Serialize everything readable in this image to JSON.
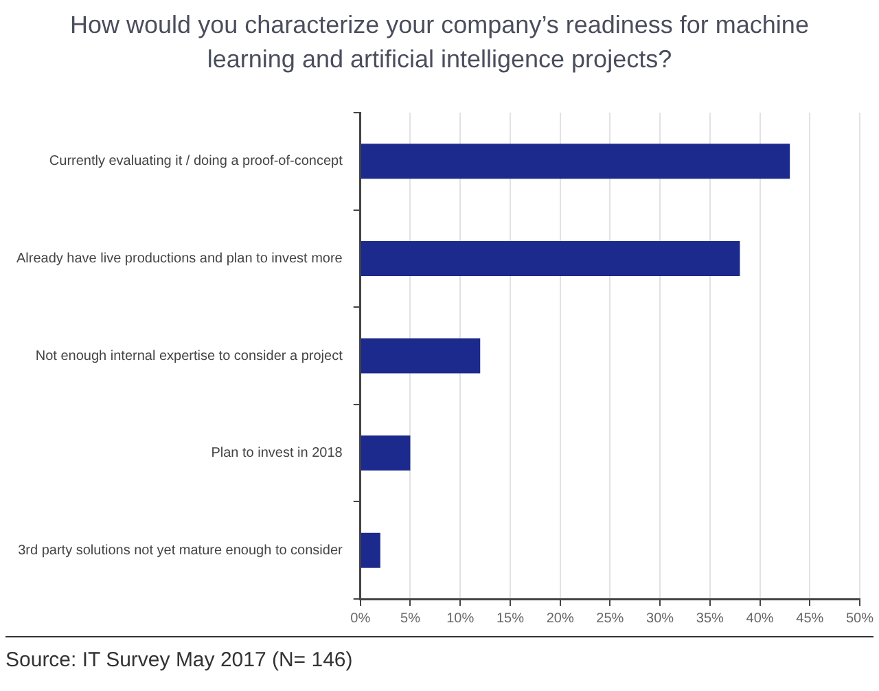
{
  "chart_data": {
    "type": "bar",
    "orientation": "horizontal",
    "title": "How would you characterize your company’s readiness for machine learning and artificial intelligence projects?",
    "categories": [
      "Currently evaluating it / doing a proof-of-concept",
      "Already have live productions and plan to invest more",
      "Not enough internal expertise to consider a project",
      "Plan to invest in 2018",
      "3rd party solutions not yet mature enough to consider"
    ],
    "values": [
      43,
      38,
      12,
      5,
      2
    ],
    "color": "#1b2a8c",
    "xlim": [
      0,
      50
    ],
    "xticks": [
      {
        "value": 0,
        "label": "0%"
      },
      {
        "value": 5,
        "label": "5%"
      },
      {
        "value": 10,
        "label": "10%"
      },
      {
        "value": 15,
        "label": "15%"
      },
      {
        "value": 20,
        "label": "20%"
      },
      {
        "value": 25,
        "label": "25%"
      },
      {
        "value": 30,
        "label": "30%"
      },
      {
        "value": 35,
        "label": "35%"
      },
      {
        "value": 40,
        "label": "40%"
      },
      {
        "value": 45,
        "label": "45%"
      },
      {
        "value": 50,
        "label": "50%"
      }
    ],
    "grid": "x",
    "annotations": [
      "Source: IT Survey May 2017 (N= 146)"
    ]
  }
}
